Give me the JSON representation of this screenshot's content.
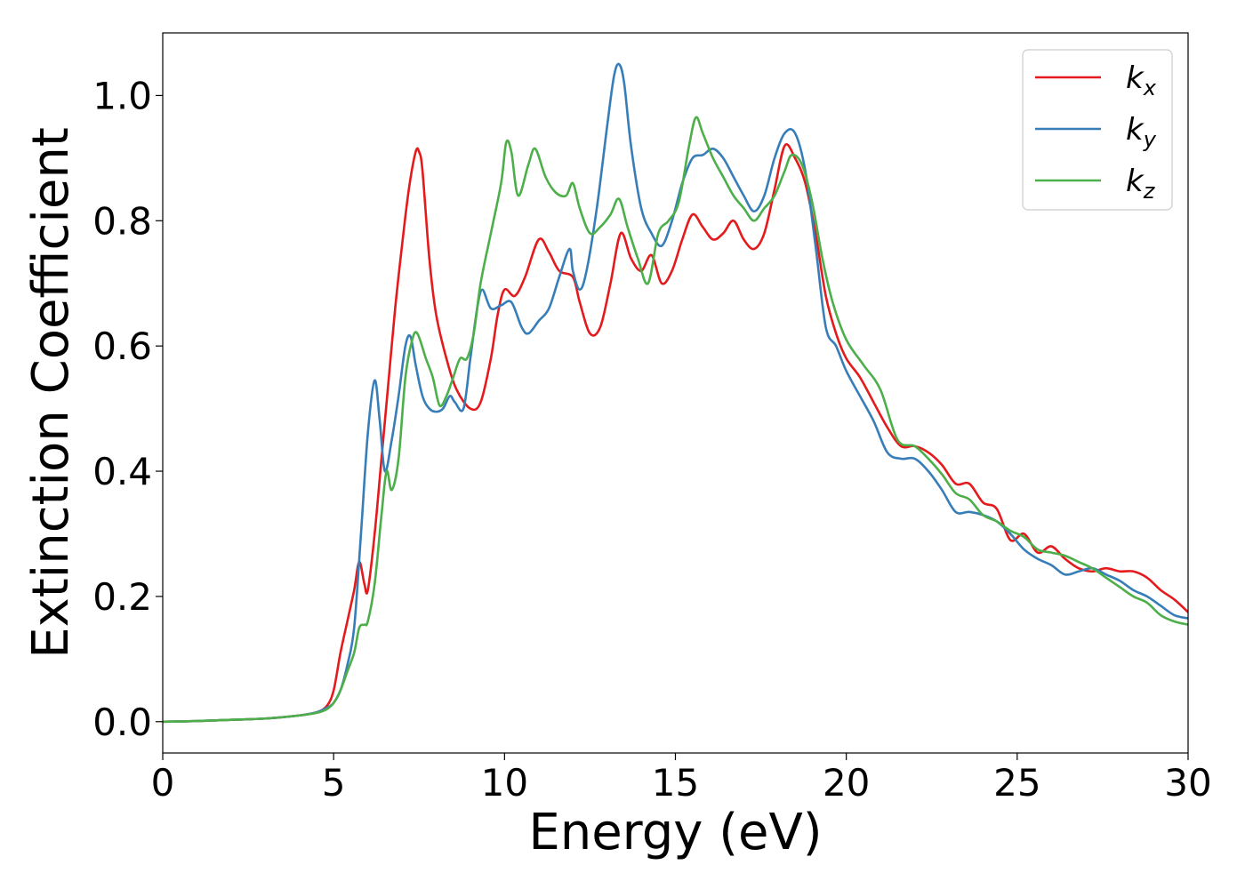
{
  "chart_data": {
    "type": "line",
    "title": "",
    "xlabel": "Energy (eV)",
    "ylabel": "Extinction Coefficient",
    "xlim": [
      0,
      30
    ],
    "ylim": [
      -0.05,
      1.1
    ],
    "xticks": [
      0,
      5,
      10,
      15,
      20,
      25,
      30
    ],
    "xtick_labels": [
      "0",
      "5",
      "10",
      "15",
      "20",
      "25",
      "30"
    ],
    "yticks": [
      0.0,
      0.2,
      0.4,
      0.6,
      0.8,
      1.0
    ],
    "ytick_labels": [
      "0.0",
      "0.2",
      "0.4",
      "0.6",
      "0.8",
      "1.0"
    ],
    "grid": false,
    "legend_position": "top-right",
    "series": [
      {
        "name": "k_x",
        "label_main": "k",
        "label_sub": "x",
        "color": "#e41a1c",
        "x": [
          0,
          1,
          2,
          3,
          4,
          4.5,
          4.8,
          5.0,
          5.2,
          5.4,
          5.6,
          5.75,
          5.9,
          6.0,
          6.2,
          6.4,
          6.6,
          6.8,
          7.0,
          7.2,
          7.4,
          7.5,
          7.6,
          7.8,
          8.0,
          8.3,
          8.6,
          9.0,
          9.3,
          9.6,
          9.8,
          10.0,
          10.3,
          10.6,
          11.0,
          11.3,
          11.6,
          12.0,
          12.2,
          12.5,
          12.8,
          13.1,
          13.4,
          13.7,
          14.0,
          14.3,
          14.6,
          14.9,
          15.2,
          15.5,
          15.8,
          16.1,
          16.4,
          16.7,
          17.0,
          17.3,
          17.6,
          17.9,
          18.2,
          18.5,
          18.8,
          19.1,
          19.4,
          19.7,
          20.0,
          20.4,
          20.8,
          21.2,
          21.6,
          22.0,
          22.4,
          22.8,
          23.2,
          23.6,
          24.0,
          24.4,
          24.8,
          25.2,
          25.6,
          26.0,
          26.4,
          26.8,
          27.2,
          27.6,
          28.0,
          28.4,
          28.8,
          29.2,
          29.6,
          30
        ],
        "y": [
          0.0,
          0.001,
          0.003,
          0.005,
          0.01,
          0.015,
          0.025,
          0.05,
          0.11,
          0.16,
          0.21,
          0.255,
          0.22,
          0.21,
          0.3,
          0.42,
          0.54,
          0.66,
          0.76,
          0.85,
          0.91,
          0.91,
          0.88,
          0.74,
          0.65,
          0.58,
          0.53,
          0.5,
          0.51,
          0.58,
          0.65,
          0.69,
          0.68,
          0.71,
          0.77,
          0.75,
          0.72,
          0.71,
          0.67,
          0.62,
          0.63,
          0.7,
          0.78,
          0.74,
          0.72,
          0.745,
          0.7,
          0.72,
          0.77,
          0.81,
          0.79,
          0.77,
          0.78,
          0.8,
          0.77,
          0.755,
          0.78,
          0.85,
          0.92,
          0.9,
          0.86,
          0.78,
          0.68,
          0.62,
          0.58,
          0.55,
          0.51,
          0.47,
          0.44,
          0.44,
          0.43,
          0.41,
          0.38,
          0.38,
          0.35,
          0.34,
          0.29,
          0.3,
          0.27,
          0.28,
          0.26,
          0.245,
          0.24,
          0.245,
          0.24,
          0.24,
          0.23,
          0.21,
          0.195,
          0.175
        ]
      },
      {
        "name": "k_y",
        "label_main": "k",
        "label_sub": "y",
        "color": "#377eb8",
        "x": [
          0,
          1,
          2,
          3,
          4,
          4.5,
          4.8,
          5.0,
          5.2,
          5.4,
          5.6,
          5.8,
          6.0,
          6.2,
          6.35,
          6.5,
          6.7,
          6.9,
          7.1,
          7.25,
          7.4,
          7.6,
          7.8,
          8.0,
          8.2,
          8.4,
          8.55,
          8.8,
          9.0,
          9.2,
          9.35,
          9.6,
          9.9,
          10.2,
          10.5,
          10.7,
          11.0,
          11.3,
          11.6,
          11.9,
          12.0,
          12.2,
          12.4,
          12.7,
          13.0,
          13.2,
          13.35,
          13.5,
          13.7,
          14.0,
          14.3,
          14.6,
          14.9,
          15.2,
          15.5,
          15.8,
          16.1,
          16.4,
          16.7,
          17.0,
          17.3,
          17.6,
          17.9,
          18.2,
          18.5,
          18.8,
          19.1,
          19.4,
          19.7,
          20.0,
          20.4,
          20.8,
          21.2,
          21.6,
          22.0,
          22.4,
          22.8,
          23.2,
          23.6,
          24.0,
          24.4,
          24.8,
          25.2,
          25.6,
          26.0,
          26.4,
          26.8,
          27.2,
          27.6,
          28.0,
          28.4,
          28.8,
          29.2,
          29.6,
          30
        ],
        "y": [
          0.0,
          0.001,
          0.003,
          0.005,
          0.01,
          0.015,
          0.022,
          0.03,
          0.05,
          0.09,
          0.15,
          0.3,
          0.46,
          0.545,
          0.48,
          0.4,
          0.45,
          0.52,
          0.6,
          0.615,
          0.57,
          0.52,
          0.5,
          0.495,
          0.5,
          0.52,
          0.51,
          0.5,
          0.58,
          0.66,
          0.69,
          0.66,
          0.665,
          0.67,
          0.63,
          0.62,
          0.64,
          0.66,
          0.71,
          0.755,
          0.72,
          0.69,
          0.72,
          0.82,
          0.95,
          1.03,
          1.05,
          1.02,
          0.92,
          0.82,
          0.78,
          0.76,
          0.8,
          0.86,
          0.9,
          0.905,
          0.915,
          0.9,
          0.87,
          0.84,
          0.815,
          0.84,
          0.9,
          0.94,
          0.94,
          0.88,
          0.76,
          0.63,
          0.6,
          0.56,
          0.52,
          0.48,
          0.43,
          0.42,
          0.42,
          0.4,
          0.37,
          0.335,
          0.335,
          0.33,
          0.32,
          0.3,
          0.275,
          0.26,
          0.25,
          0.235,
          0.24,
          0.245,
          0.235,
          0.225,
          0.21,
          0.2,
          0.185,
          0.17,
          0.165
        ]
      },
      {
        "name": "k_z",
        "label_main": "k",
        "label_sub": "z",
        "color": "#4daf4a",
        "x": [
          0,
          1,
          2,
          3,
          4,
          4.5,
          4.8,
          5.0,
          5.2,
          5.4,
          5.6,
          5.75,
          5.9,
          6.0,
          6.2,
          6.4,
          6.55,
          6.7,
          6.9,
          7.1,
          7.3,
          7.45,
          7.7,
          7.9,
          8.1,
          8.3,
          8.5,
          8.7,
          8.9,
          9.1,
          9.3,
          9.6,
          9.9,
          10.05,
          10.2,
          10.4,
          10.7,
          10.9,
          11.2,
          11.5,
          11.8,
          12.0,
          12.2,
          12.5,
          12.8,
          13.1,
          13.35,
          13.6,
          13.9,
          14.2,
          14.5,
          14.8,
          15.1,
          15.4,
          15.6,
          15.8,
          16.1,
          16.4,
          16.7,
          17.0,
          17.3,
          17.6,
          17.9,
          18.2,
          18.4,
          18.7,
          19.0,
          19.3,
          19.6,
          20.0,
          20.5,
          21.0,
          21.5,
          22.0,
          22.4,
          22.8,
          23.2,
          23.6,
          24.0,
          24.4,
          24.8,
          25.2,
          25.6,
          26.0,
          26.4,
          26.8,
          27.2,
          27.6,
          28.0,
          28.4,
          28.8,
          29.2,
          29.6,
          30
        ],
        "y": [
          0.0,
          0.001,
          0.003,
          0.005,
          0.01,
          0.014,
          0.02,
          0.03,
          0.05,
          0.08,
          0.11,
          0.15,
          0.155,
          0.16,
          0.22,
          0.33,
          0.4,
          0.37,
          0.42,
          0.55,
          0.61,
          0.62,
          0.58,
          0.55,
          0.505,
          0.52,
          0.55,
          0.58,
          0.58,
          0.62,
          0.7,
          0.78,
          0.86,
          0.925,
          0.91,
          0.84,
          0.89,
          0.915,
          0.87,
          0.845,
          0.84,
          0.86,
          0.82,
          0.78,
          0.79,
          0.81,
          0.835,
          0.79,
          0.74,
          0.7,
          0.78,
          0.8,
          0.83,
          0.92,
          0.965,
          0.94,
          0.9,
          0.87,
          0.84,
          0.82,
          0.8,
          0.82,
          0.84,
          0.88,
          0.905,
          0.89,
          0.83,
          0.74,
          0.67,
          0.61,
          0.57,
          0.53,
          0.45,
          0.44,
          0.42,
          0.395,
          0.365,
          0.355,
          0.33,
          0.32,
          0.305,
          0.295,
          0.275,
          0.27,
          0.265,
          0.255,
          0.245,
          0.23,
          0.215,
          0.2,
          0.19,
          0.17,
          0.16,
          0.155
        ]
      }
    ]
  }
}
